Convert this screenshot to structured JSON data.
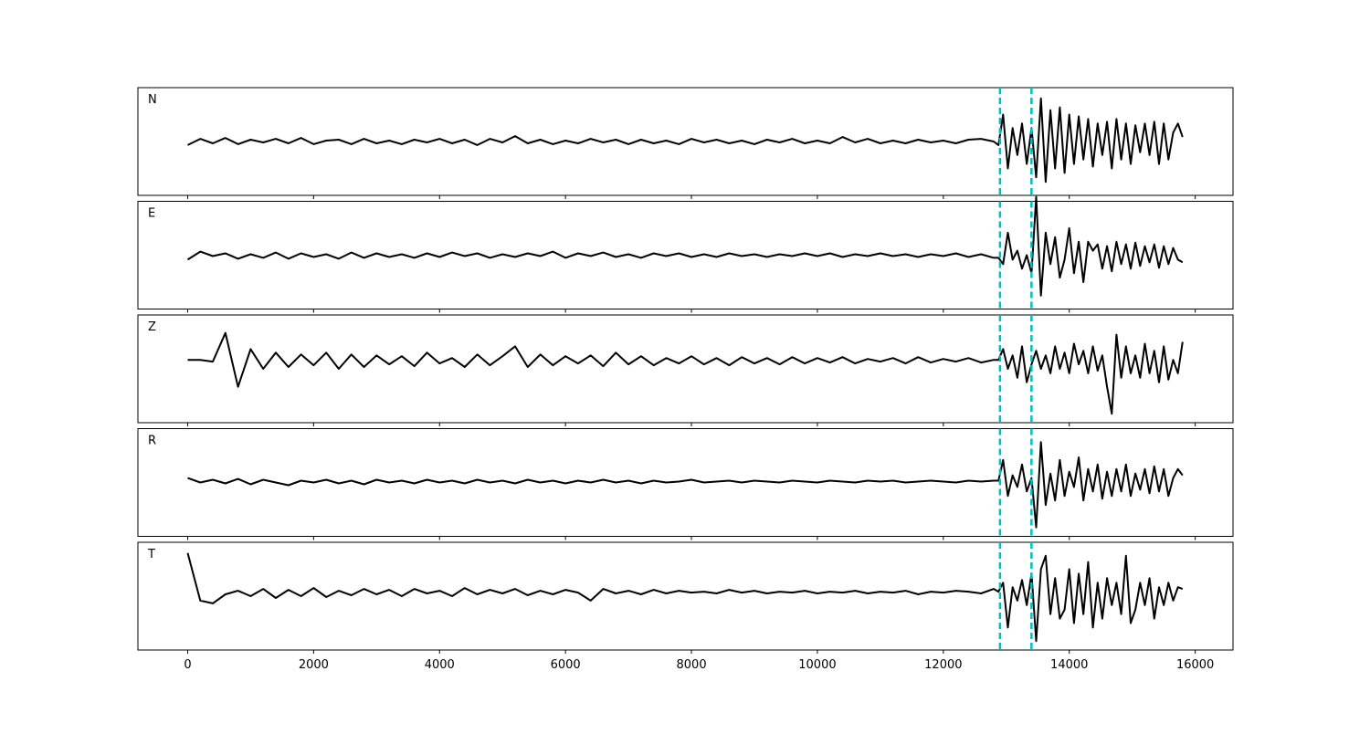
{
  "chart_data": {
    "type": "line",
    "x": [
      0,
      200,
      400,
      600,
      800,
      1000,
      1200,
      1400,
      1600,
      1800,
      2000,
      2200,
      2400,
      2600,
      2800,
      3000,
      3200,
      3400,
      3600,
      3800,
      4000,
      4200,
      4400,
      4600,
      4800,
      5000,
      5200,
      5400,
      5600,
      5800,
      6000,
      6200,
      6400,
      6600,
      6800,
      7000,
      7200,
      7400,
      7600,
      7800,
      8000,
      8200,
      8400,
      8600,
      8800,
      9000,
      9200,
      9400,
      9600,
      9800,
      10000,
      10200,
      10400,
      10600,
      10800,
      11000,
      11200,
      11400,
      11600,
      11800,
      12000,
      12200,
      12400,
      12600,
      12800,
      12875,
      12950,
      13025,
      13100,
      13175,
      13250,
      13325,
      13400,
      13475,
      13550,
      13625,
      13700,
      13775,
      13850,
      13925,
      14000,
      14075,
      14150,
      14225,
      14300,
      14375,
      14450,
      14525,
      14600,
      14675,
      14750,
      14825,
      14900,
      14975,
      15050,
      15125,
      15200,
      15275,
      15350,
      15425,
      15500,
      15575,
      15650,
      15725,
      15800
    ],
    "series": [
      {
        "name": "N",
        "color": "#000000",
        "values": [
          -4,
          3,
          -2,
          4,
          -3,
          2,
          -1,
          3,
          -2,
          4,
          -3,
          1,
          2,
          -3,
          3,
          -2,
          1,
          -3,
          2,
          -1,
          3,
          -2,
          2,
          -4,
          3,
          -1,
          6,
          -2,
          2,
          -3,
          1,
          -2,
          3,
          -1,
          2,
          -3,
          2,
          -2,
          1,
          -3,
          3,
          -1,
          2,
          -2,
          1,
          -3,
          2,
          -1,
          3,
          -2,
          1,
          -2,
          5,
          -1,
          3,
          -2,
          1,
          -2,
          2,
          -1,
          1,
          -2,
          2,
          3,
          0,
          -4,
          30,
          -30,
          15,
          -15,
          20,
          -25,
          15,
          -40,
          48,
          -45,
          35,
          -30,
          38,
          -35,
          30,
          -25,
          28,
          -20,
          25,
          -28,
          20,
          -15,
          22,
          -30,
          25,
          -20,
          20,
          -25,
          18,
          -12,
          20,
          -15,
          22,
          -25,
          20,
          -20,
          10,
          20,
          5
        ]
      },
      {
        "name": "E",
        "color": "#000000",
        "values": [
          -5,
          4,
          -1,
          2,
          -4,
          1,
          -3,
          3,
          -4,
          2,
          -2,
          1,
          -4,
          3,
          -3,
          2,
          -2,
          1,
          -3,
          2,
          -2,
          3,
          -1,
          2,
          -3,
          1,
          -2,
          2,
          -1,
          4,
          -3,
          2,
          -1,
          3,
          -2,
          1,
          -3,
          2,
          -1,
          2,
          -2,
          1,
          -2,
          2,
          -1,
          1,
          -2,
          1,
          -1,
          2,
          -1,
          2,
          -2,
          1,
          -1,
          2,
          -1,
          1,
          -2,
          1,
          -1,
          2,
          -2,
          1,
          -3,
          -3,
          -10,
          25,
          -5,
          5,
          -15,
          0,
          -20,
          65,
          -45,
          25,
          -10,
          20,
          -25,
          -5,
          30,
          -20,
          15,
          -30,
          15,
          5,
          12,
          -15,
          10,
          -18,
          15,
          -10,
          12,
          -15,
          14,
          -12,
          10,
          -8,
          12,
          -14,
          10,
          -10,
          8,
          -5,
          -8
        ]
      },
      {
        "name": "Z",
        "color": "#000000",
        "values": [
          10,
          10,
          8,
          40,
          -20,
          22,
          0,
          18,
          2,
          16,
          4,
          18,
          0,
          16,
          2,
          15,
          5,
          14,
          3,
          18,
          6,
          12,
          2,
          16,
          4,
          14,
          25,
          2,
          16,
          4,
          14,
          6,
          15,
          3,
          18,
          5,
          14,
          4,
          12,
          6,
          14,
          5,
          12,
          4,
          13,
          6,
          12,
          5,
          13,
          6,
          12,
          7,
          13,
          6,
          11,
          8,
          12,
          6,
          13,
          7,
          11,
          8,
          12,
          7,
          10,
          10,
          22,
          0,
          15,
          -10,
          25,
          -15,
          5,
          20,
          0,
          15,
          -5,
          25,
          0,
          18,
          -5,
          28,
          5,
          20,
          -5,
          25,
          -2,
          15,
          -20,
          -50,
          38,
          -10,
          25,
          -5,
          15,
          -10,
          28,
          -5,
          20,
          -15,
          25,
          -12,
          10,
          -5,
          30
        ]
      },
      {
        "name": "R",
        "color": "#000000",
        "values": [
          5,
          0,
          3,
          -1,
          4,
          -2,
          3,
          0,
          -3,
          2,
          0,
          3,
          -1,
          2,
          -2,
          3,
          0,
          2,
          -1,
          3,
          0,
          2,
          -1,
          3,
          0,
          2,
          -1,
          3,
          0,
          2,
          -1,
          2,
          0,
          3,
          0,
          2,
          -1,
          2,
          0,
          1,
          3,
          0,
          1,
          2,
          0,
          2,
          1,
          0,
          2,
          1,
          0,
          2,
          1,
          0,
          2,
          1,
          2,
          0,
          1,
          2,
          1,
          0,
          2,
          1,
          2,
          2,
          25,
          -15,
          8,
          -5,
          20,
          -10,
          5,
          -50,
          45,
          -25,
          10,
          -20,
          25,
          -15,
          12,
          -5,
          28,
          -20,
          15,
          -10,
          20,
          -18,
          12,
          -15,
          15,
          -10,
          20,
          -15,
          10,
          -8,
          15,
          -12,
          18,
          -10,
          15,
          -15,
          5,
          15,
          8
        ]
      },
      {
        "name": "T",
        "color": "#000000",
        "values": [
          48,
          -5,
          -8,
          2,
          6,
          0,
          8,
          -2,
          7,
          0,
          9,
          -1,
          6,
          1,
          8,
          2,
          7,
          0,
          8,
          3,
          6,
          0,
          9,
          2,
          7,
          3,
          8,
          1,
          6,
          2,
          7,
          4,
          -5,
          8,
          3,
          6,
          2,
          7,
          3,
          6,
          4,
          5,
          3,
          7,
          4,
          6,
          3,
          5,
          4,
          6,
          3,
          5,
          4,
          6,
          3,
          5,
          4,
          6,
          2,
          5,
          4,
          6,
          5,
          3,
          8,
          5,
          15,
          -35,
          10,
          -5,
          18,
          -10,
          25,
          -50,
          30,
          45,
          -20,
          20,
          -25,
          -15,
          30,
          -30,
          25,
          -20,
          38,
          -35,
          15,
          -25,
          20,
          -10,
          15,
          -20,
          45,
          -30,
          -15,
          15,
          -10,
          20,
          -25,
          10,
          -10,
          15,
          -5,
          10,
          8
        ]
      }
    ],
    "vlines": [
      12900,
      13400
    ],
    "vline_color": "#00bfbf",
    "xlim": [
      -790,
      16600
    ],
    "ylim": [
      -60,
      60
    ],
    "xticks": [
      0,
      2000,
      4000,
      6000,
      8000,
      10000,
      12000,
      14000,
      16000
    ]
  }
}
